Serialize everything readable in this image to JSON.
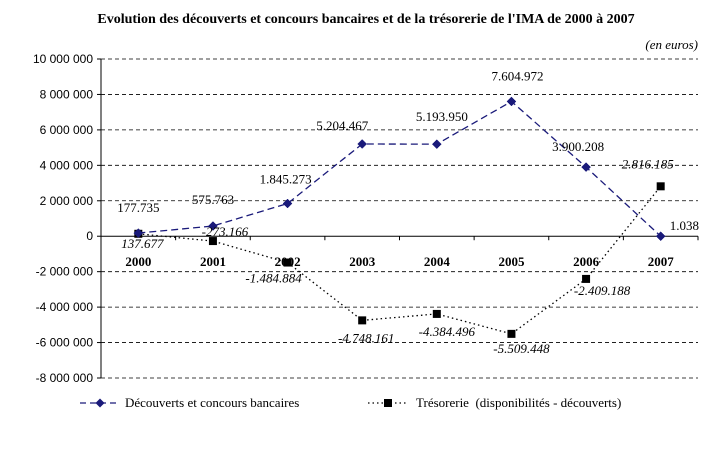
{
  "chart_data": {
    "type": "line",
    "title": "Evolution des découverts et concours bancaires et de la trésorerie de l'IMA de 2000 à 2007",
    "subtitle": "(en euros)",
    "x": [
      "2000",
      "2001",
      "2002",
      "2003",
      "2004",
      "2005",
      "2006",
      "2007"
    ],
    "ylim": [
      -8000000,
      10000000
    ],
    "ytick_values": [
      10000000,
      8000000,
      6000000,
      4000000,
      2000000,
      0,
      -2000000,
      -4000000,
      -6000000,
      -8000000
    ],
    "ytick_labels": [
      "10 000 000",
      "8 000 000",
      "6 000 000",
      "4 000 000",
      "2 000 000",
      "0",
      "-2 000 000",
      "-4 000 000",
      "-6 000 000",
      "-8 000 000"
    ],
    "grid": "horizontal dashed",
    "legend_position": "bottom",
    "series": [
      {
        "name": "Découverts et concours bancaires",
        "color": "#1a1a7a",
        "marker": "diamond",
        "line_style": "dashed",
        "values": [
          177735,
          575763,
          1845273,
          5204467,
          5193950,
          7604972,
          3900208,
          1038
        ],
        "labels": [
          "177.735",
          "575.763",
          "1.845.273",
          "5.204.467",
          "5.193.950",
          "7.604.972",
          "3.900.208",
          "1.038"
        ]
      },
      {
        "name": "Trésorerie  (disponibilités - découverts)",
        "color": "#000000",
        "marker": "square",
        "line_style": "dotted",
        "values": [
          137677,
          -273166,
          -1484884,
          -4748161,
          -4384496,
          -5509448,
          -2409188,
          2816185
        ],
        "labels": [
          "137.677",
          "-273.166",
          "-1.484.884",
          "-4.748.161",
          "-4.384.496",
          "-5.509.448",
          "-2.409.188",
          "2.816.185"
        ]
      }
    ]
  }
}
